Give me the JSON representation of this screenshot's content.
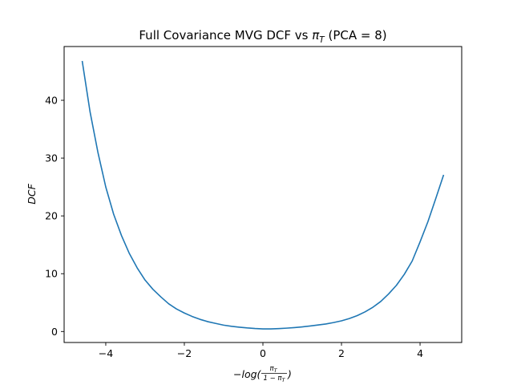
{
  "chart_data": {
    "type": "line",
    "title": {
      "prefix": "Full Covariance MVG DCF vs ",
      "symbol": "π",
      "symbol_sub": "T",
      "suffix": " (PCA = 8)"
    },
    "xlabel": {
      "sign": "−log(",
      "numerator": "π",
      "numerator_sub": "T",
      "denominator": "1 − π",
      "denominator_sub": "T",
      "close": ")"
    },
    "ylabel": "DCF",
    "xlim": [
      -5.06,
      5.06
    ],
    "ylim": [
      -1.9,
      49.3
    ],
    "xticks": [
      -4,
      -2,
      0,
      2,
      4
    ],
    "xtick_labels": [
      "−4",
      "−2",
      "0",
      "2",
      "4"
    ],
    "yticks": [
      0,
      10,
      20,
      30,
      40
    ],
    "ytick_labels": [
      "0",
      "10",
      "20",
      "30",
      "40"
    ],
    "grid": false,
    "legend": false,
    "line_color": "#1f77b4",
    "series": [
      {
        "x": [
          -4.6,
          -4.4,
          -4.2,
          -4.0,
          -3.8,
          -3.6,
          -3.4,
          -3.2,
          -3.0,
          -2.8,
          -2.6,
          -2.4,
          -2.2,
          -2.0,
          -1.8,
          -1.6,
          -1.4,
          -1.2,
          -1.0,
          -0.8,
          -0.6,
          -0.4,
          -0.2,
          0.0,
          0.2,
          0.4,
          0.6,
          0.8,
          1.0,
          1.2,
          1.4,
          1.6,
          1.8,
          2.0,
          2.2,
          2.4,
          2.6,
          2.8,
          3.0,
          3.2,
          3.4,
          3.6,
          3.8,
          4.0,
          4.2,
          4.4,
          4.6
        ],
        "values": [
          46.8,
          38.0,
          31.0,
          25.0,
          20.3,
          16.6,
          13.5,
          11.0,
          8.9,
          7.3,
          6.0,
          4.8,
          3.9,
          3.2,
          2.6,
          2.1,
          1.7,
          1.4,
          1.1,
          0.9,
          0.75,
          0.62,
          0.52,
          0.45,
          0.45,
          0.5,
          0.58,
          0.68,
          0.8,
          0.95,
          1.12,
          1.3,
          1.55,
          1.85,
          2.25,
          2.75,
          3.4,
          4.2,
          5.2,
          6.5,
          8.0,
          9.9,
          12.2,
          15.5,
          19.0,
          23.0,
          27.1
        ]
      }
    ]
  }
}
